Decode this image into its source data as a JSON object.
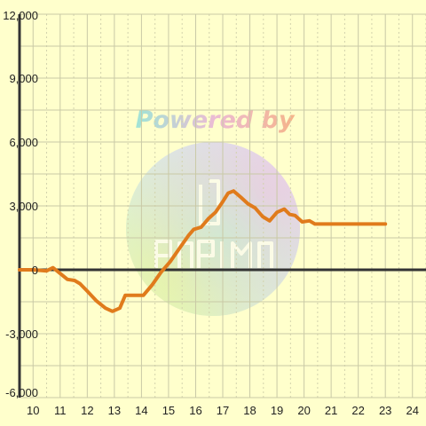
{
  "colors": {
    "background": "#ffffcc",
    "grid_major": "#c9c9a6",
    "grid_minor": "#d2d2ac",
    "axis": "#333333",
    "series": "#e07b1c"
  },
  "watermark": {
    "text": "Powered by"
  },
  "chart_data": {
    "type": "line",
    "title": "",
    "xlabel": "",
    "ylabel": "",
    "xlim": [
      9.5,
      24.5
    ],
    "ylim": [
      -6000,
      12000
    ],
    "x_ticks": [
      10,
      11,
      12,
      13,
      14,
      15,
      16,
      17,
      18,
      19,
      20,
      21,
      22,
      23,
      24
    ],
    "y_ticks": [
      -6000,
      -3000,
      0,
      3000,
      6000,
      9000,
      12000
    ],
    "x_tick_labels": [
      "10",
      "11",
      "12",
      "13",
      "14",
      "15",
      "16",
      "17",
      "18",
      "19",
      "20",
      "21",
      "22",
      "23",
      "24"
    ],
    "y_tick_labels": [
      "-6,000",
      "-3,000",
      "0",
      "3,000",
      "6,000",
      "9,000",
      "12,000"
    ],
    "grid": true,
    "zero_line": true,
    "series": [
      {
        "x": [
          9.5,
          10.0,
          10.5,
          10.73,
          10.93,
          11.27,
          11.53,
          11.73,
          12.0,
          12.33,
          12.67,
          12.93,
          13.2,
          13.4,
          13.87,
          14.07,
          14.4,
          14.73,
          15.07,
          15.4,
          15.73,
          15.93,
          16.2,
          16.47,
          16.73,
          17.0,
          17.2,
          17.4,
          17.67,
          17.93,
          18.2,
          18.47,
          18.73,
          19.0,
          19.27,
          19.47,
          19.67,
          19.93,
          20.2,
          20.4,
          20.6,
          20.87,
          21.13,
          21.4,
          21.67,
          21.93,
          22.2,
          22.47,
          22.73,
          23.0
        ],
        "y": [
          0,
          0,
          -50,
          100,
          -100,
          -450,
          -500,
          -650,
          -1000,
          -1450,
          -1800,
          -1950,
          -1800,
          -1200,
          -1200,
          -1200,
          -700,
          -100,
          400,
          1000,
          1600,
          1900,
          2000,
          2400,
          2700,
          3200,
          3600,
          3700,
          3400,
          3100,
          2900,
          2500,
          2300,
          2700,
          2850,
          2600,
          2550,
          2250,
          2300,
          2150,
          2150,
          2150,
          2150,
          2150,
          2150,
          2150,
          2150,
          2150,
          2150,
          2150
        ]
      }
    ]
  }
}
